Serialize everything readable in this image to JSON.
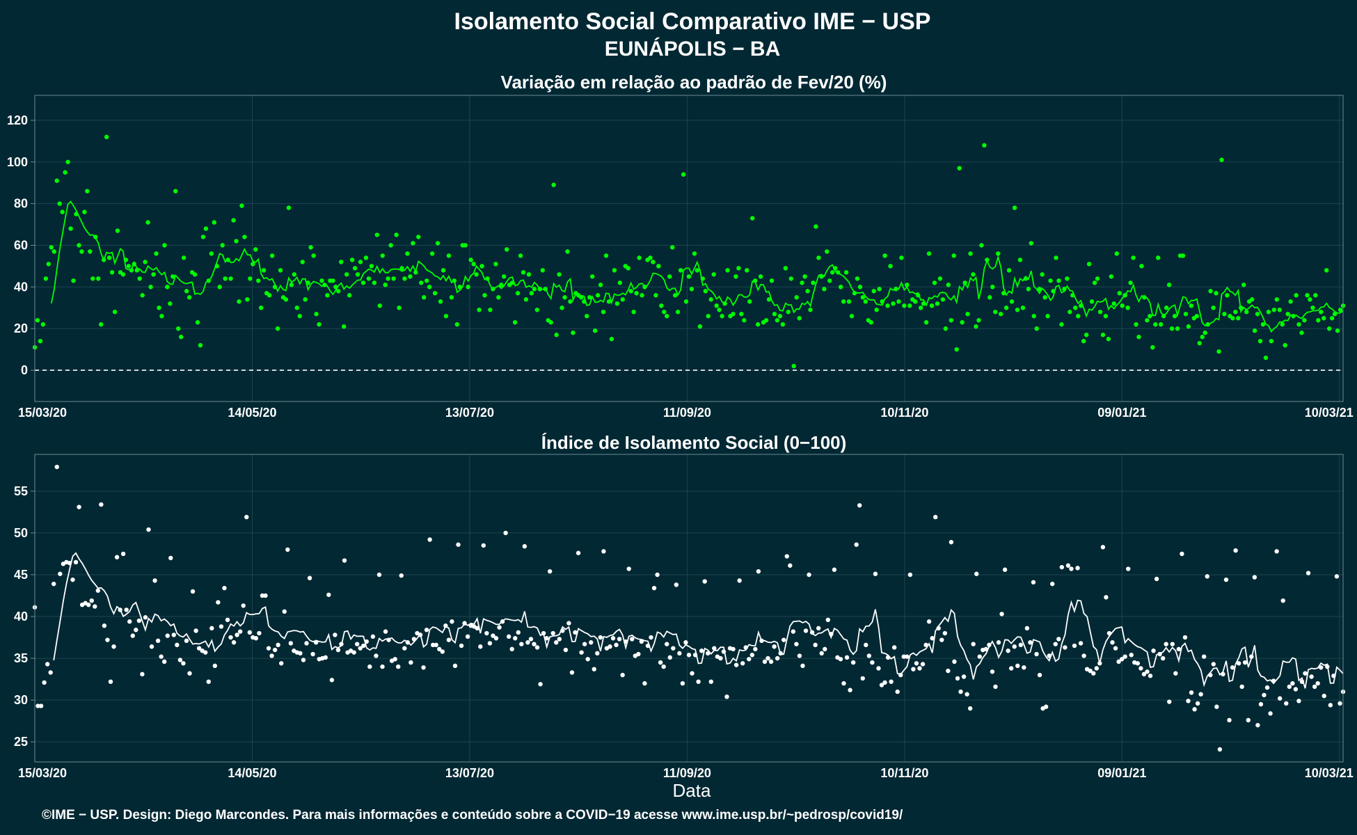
{
  "title": "Isolamento Social Comparativo IME − USP",
  "subtitle": "EUNÁPOLIS − BA",
  "footer": "©IME − USP. Design: Diego Marcondes. Para mais informações e conteúdo sobre a COVID−19 acesse www.ime.usp.br/~pedrosp/covid19/",
  "colors": {
    "background": "#022833",
    "variation": "#00ff00",
    "negative": "#ff0000",
    "index": "#ffffff"
  },
  "chart_data": [
    {
      "type": "scatter",
      "title": "Variação em relação ao padrão de Fev/20 (%)",
      "xlabel": "",
      "ylabel": "",
      "x_ticks": [
        "15/03/20",
        "14/05/20",
        "13/07/20",
        "11/09/20",
        "10/11/20",
        "09/01/21",
        "10/03/21"
      ],
      "x_range": [
        "15/03/20",
        "11/03/21"
      ],
      "y_ticks": [
        "0",
        "20",
        "40",
        "60",
        "80",
        "100",
        "120"
      ],
      "ylim": [
        -15,
        132
      ],
      "reference_line": 0,
      "trend_line": "7-day moving average",
      "series": [
        {
          "values": [
            11,
            24,
            14,
            22,
            44,
            51,
            59,
            57,
            91,
            80,
            76,
            95,
            100,
            68,
            43,
            75,
            60,
            57,
            76,
            86,
            57,
            44,
            64,
            44,
            22,
            53,
            112,
            54,
            47,
            28,
            67,
            47,
            46,
            53,
            50,
            48,
            51,
            48,
            44,
            36,
            52,
            71,
            40,
            46,
            56,
            30,
            26,
            60,
            40,
            32,
            45,
            86,
            20,
            16,
            54,
            38,
            35,
            47,
            46,
            23,
            12,
            64,
            68,
            43,
            56,
            71,
            50,
            40,
            60,
            44,
            53,
            44,
            72,
            62,
            33,
            79,
            64,
            34,
            44,
            51,
            58,
            43,
            30,
            48,
            37,
            36,
            55,
            40,
            20,
            48,
            35,
            34,
            78,
            41,
            46,
            30,
            26,
            52,
            34,
            42,
            59,
            55,
            27,
            22,
            43,
            41,
            36,
            43,
            43,
            40,
            38,
            52,
            21,
            46,
            36,
            53,
            49,
            46,
            52,
            42,
            54,
            44,
            50,
            42,
            65,
            31,
            55,
            41,
            44,
            60,
            44,
            65,
            30,
            49,
            44,
            56,
            45,
            61,
            47,
            64,
            42,
            35,
            43,
            40,
            56,
            37,
            61,
            33,
            48,
            26,
            55,
            35,
            43,
            22,
            40,
            60,
            60,
            40,
            53,
            51,
            46,
            29,
            50,
            36,
            44,
            29,
            39,
            51,
            35,
            41,
            45,
            58,
            41,
            42,
            23,
            37,
            55,
            47,
            34,
            46,
            37,
            39,
            29,
            39,
            48,
            39,
            24,
            23,
            89,
            17,
            46,
            30,
            35,
            57,
            33,
            18,
            37,
            36,
            35,
            33,
            26,
            35,
            45,
            19,
            36,
            41,
            28,
            55,
            33,
            15,
            48,
            32,
            42,
            34,
            50,
            49,
            38,
            28,
            37,
            54,
            36,
            40,
            53,
            54,
            52,
            36,
            50,
            31,
            28,
            26,
            45,
            59,
            36,
            28,
            48,
            94,
            33,
            45,
            39,
            56,
            48,
            21,
            44,
            38,
            26,
            34,
            46,
            31,
            29,
            26,
            32,
            48,
            26,
            27,
            45,
            49,
            27,
            24,
            48,
            33,
            73,
            43,
            22,
            45,
            23,
            24,
            34,
            43,
            27,
            24,
            26,
            22,
            49,
            28,
            44,
            2,
            35,
            25,
            42,
            45,
            38,
            29,
            42,
            69,
            54,
            45,
            39,
            57,
            43,
            47,
            49,
            47,
            40,
            33,
            47,
            33,
            26,
            37,
            44,
            40,
            35,
            33,
            24,
            23,
            38,
            29,
            39,
            33,
            55,
            31,
            50,
            32,
            39,
            33,
            54,
            31,
            41,
            31,
            34,
            33,
            36,
            30,
            32,
            23,
            56,
            31,
            42,
            32,
            44,
            34,
            20,
            41,
            24,
            55,
            10,
            97,
            23,
            42,
            27,
            56,
            46,
            21,
            24,
            60,
            108,
            53,
            35,
            40,
            28,
            56,
            27,
            37,
            30,
            48,
            33,
            78,
            29,
            53,
            30,
            44,
            39,
            61,
            26,
            20,
            39,
            46,
            35,
            26,
            43,
            38,
            54,
            43,
            22,
            39,
            44,
            28,
            36,
            30,
            26,
            31,
            14,
            17,
            51,
            33,
            42,
            44,
            28,
            17,
            26,
            15,
            45,
            32,
            56,
            37,
            31,
            36,
            30,
            42,
            54,
            22,
            16,
            50,
            35,
            24,
            26,
            11,
            22,
            54,
            22,
            26,
            30,
            41,
            20,
            26,
            20,
            55,
            55,
            27,
            21,
            31,
            25,
            26,
            13,
            16,
            18,
            22,
            38,
            30,
            37,
            9,
            101,
            27,
            36,
            26,
            25,
            28,
            25,
            30,
            41,
            28,
            33,
            34,
            19,
            27,
            14,
            22,
            6,
            28,
            14,
            29,
            34,
            29,
            22,
            12,
            27,
            33,
            26,
            36,
            22,
            18,
            24,
            36,
            34,
            30,
            36,
            24,
            28,
            25,
            48,
            20,
            25,
            27,
            19,
            29,
            31
          ]
        }
      ]
    },
    {
      "type": "scatter",
      "title": "Índice de Isolamento Social (0−100)",
      "xlabel": "Data",
      "ylabel": "",
      "x_ticks": [
        "15/03/20",
        "14/05/20",
        "13/07/20",
        "11/09/20",
        "10/11/20",
        "09/01/21",
        "10/03/21"
      ],
      "x_range": [
        "15/03/20",
        "11/03/21"
      ],
      "y_ticks": [
        "25",
        "30",
        "35",
        "40",
        "45",
        "50",
        "55"
      ],
      "ylim": [
        22.6,
        59.4
      ],
      "trend_line": "7-day moving average",
      "series": [
        {
          "values": [
            41.1,
            29.3,
            29.3,
            32.1,
            34.3,
            33.3,
            43.9,
            57.9,
            45.1,
            46.3,
            46.5,
            46.4,
            44.4,
            46.5,
            53.1,
            41.4,
            41.6,
            41.4,
            41.9,
            41.2,
            43.1,
            53.4,
            38.9,
            37.2,
            32.2,
            36.4,
            47.1,
            40.8,
            47.5,
            40.8,
            39.4,
            37.7,
            38.4,
            39.5,
            33.1,
            39.9,
            50.4,
            36.4,
            44.3,
            37.1,
            35.2,
            34.6,
            37.7,
            47.0,
            37.8,
            36.6,
            34.8,
            34.4,
            37.1,
            33.2,
            43.0,
            38.3,
            36.2,
            35.9,
            35.7,
            32.2,
            38.6,
            34.1,
            41.7,
            38.8,
            43.4,
            39.6,
            37.5,
            36.9,
            37.8,
            38.2,
            41.3,
            51.9,
            38.1,
            37.5,
            37.4,
            38.0,
            42.5,
            42.5,
            36.2,
            35.3,
            36.0,
            36.6,
            34.4,
            40.6,
            48.0,
            36.8,
            35.9,
            35.7,
            35.6,
            34.8,
            36.8,
            44.6,
            35.5,
            36.9,
            34.9,
            35.0,
            35.1,
            42.6,
            32.4,
            37.8,
            36.0,
            36.7,
            46.7,
            35.7,
            35.9,
            35.7,
            36.7,
            36.2,
            36.5,
            37.0,
            34.0,
            37.6,
            35.3,
            45.0,
            34.0,
            38.2,
            37.2,
            34.7,
            34.9,
            34.0,
            44.9,
            36.2,
            36.9,
            34.5,
            37.3,
            38.0,
            37.8,
            33.9,
            38.4,
            49.2,
            36.6,
            36.6,
            36.1,
            35.8,
            38.9,
            37.2,
            39.4,
            34.1,
            48.6,
            36.5,
            39.2,
            37.6,
            38.9,
            38.8,
            38.6,
            36.4,
            48.5,
            38.0,
            36.8,
            37.7,
            37.4,
            38.7,
            39.4,
            50.0,
            37.6,
            36.1,
            37.4,
            38.1,
            36.7,
            48.4,
            36.9,
            37.3,
            36.7,
            36.3,
            31.9,
            38.0,
            37.4,
            45.4,
            38.0,
            36.9,
            37.3,
            38.3,
            36.0,
            39.2,
            33.3,
            38.1,
            47.6,
            35.7,
            36.7,
            34.9,
            36.9,
            33.7,
            35.6,
            37.5,
            47.8,
            36.2,
            36.4,
            37.4,
            36.6,
            37.3,
            33.0,
            37.0,
            45.7,
            37.3,
            35.3,
            35.5,
            37.0,
            32.0,
            36.5,
            37.5,
            43.4,
            45.0,
            34.5,
            34.0,
            36.7,
            35.1,
            36.2,
            43.8,
            35.6,
            32.0,
            36.9,
            35.4,
            33.2,
            35.4,
            32.2,
            35.9,
            44.2,
            35.6,
            32.2,
            36.2,
            35.2,
            35.0,
            35.8,
            30.4,
            36.2,
            36.1,
            34.2,
            44.3,
            34.4,
            36.3,
            34.9,
            35.4,
            36.1,
            45.4,
            37.1,
            34.6,
            35.0,
            34.6,
            36.4,
            35.0,
            35.6,
            37.2,
            47.2,
            46.1,
            38.2,
            36.7,
            35.3,
            34.1,
            38.3,
            45.0,
            38.1,
            36.6,
            38.6,
            35.6,
            36.1,
            39.6,
            37.9,
            45.6,
            35.1,
            34.9,
            32.0,
            35.1,
            31.2,
            34.5,
            48.6,
            53.3,
            32.6,
            36.6,
            35.3,
            34.5,
            45.1,
            33.8,
            31.8,
            32.1,
            35.1,
            32.2,
            36.3,
            31.0,
            33.0,
            35.2,
            35.2,
            45.0,
            33.7,
            34.4,
            33.8,
            34.3,
            36.6,
            39.4,
            37.4,
            51.9,
            38.6,
            37.2,
            38.0,
            33.5,
            48.9,
            34.6,
            32.6,
            31.0,
            32.8,
            30.7,
            29.0,
            36.7,
            45.1,
            35.2,
            36.0,
            36.1,
            36.6,
            33.4,
            31.6,
            36.9,
            40.3,
            45.6,
            35.9,
            33.8,
            36.4,
            34.1,
            36.6,
            33.9,
            38.6,
            36.9,
            44.1,
            35.5,
            33.0,
            29.0,
            29.2,
            35.3,
            43.9,
            36.7,
            37.3,
            45.9,
            36.3,
            46.1,
            45.7,
            36.5,
            45.8,
            36.8,
            35.3,
            33.7,
            33.5,
            33.2,
            33.8,
            34.4,
            48.3,
            42.3,
            38.0,
            36.9,
            36.2,
            34.6,
            34.9,
            35.2,
            45.7,
            35.4,
            34.5,
            34.4,
            33.8,
            33.1,
            33.4,
            32.9,
            35.9,
            44.5,
            35.5,
            35.0,
            36.7,
            29.8,
            36.7,
            33.2,
            36.1,
            47.5,
            37.5,
            29.9,
            30.9,
            28.9,
            29.6,
            30.7,
            35.2,
            44.8,
            33.0,
            34.3,
            29.2,
            24.1,
            33.1,
            44.4,
            27.6,
            33.9,
            47.9,
            34.4,
            31.6,
            34.5,
            27.6,
            35.2,
            44.7,
            27.0,
            29.5,
            30.6,
            31.5,
            28.4,
            32.3,
            47.8,
            30.2,
            41.9,
            29.6,
            31.6,
            32.0,
            31.3,
            29.9,
            32.2,
            33.2,
            45.2,
            32.8,
            31.6,
            32.0,
            33.9,
            30.5,
            34.0,
            29.4,
            32.9,
            44.8,
            29.6,
            31.0
          ]
        }
      ]
    }
  ]
}
